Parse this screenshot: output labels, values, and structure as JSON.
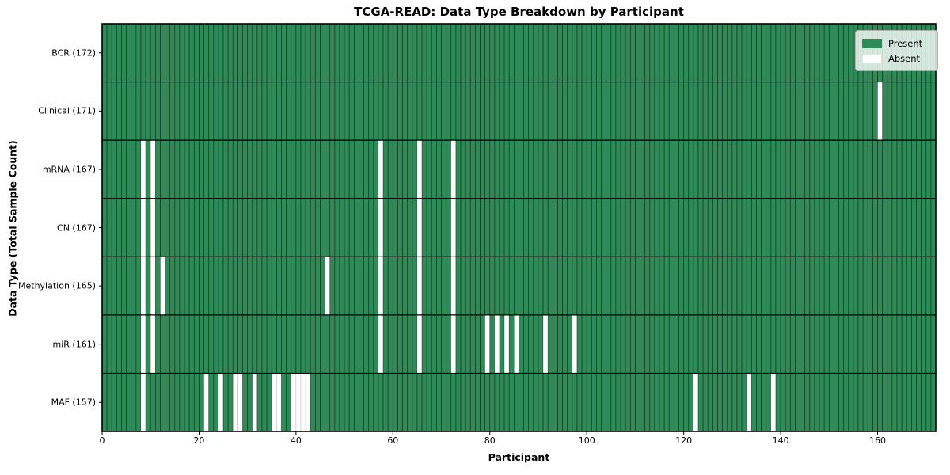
{
  "title": "TCGA-READ: Data Type Breakdown by Participant",
  "chart_data": {
    "type": "heatmap",
    "title": "TCGA-READ: Data Type Breakdown by Participant",
    "xlabel": "Participant",
    "ylabel": "Data Type (Total Sample Count)",
    "x_ticks": [
      0,
      20,
      40,
      60,
      80,
      100,
      120,
      140,
      160
    ],
    "x_range": [
      0,
      172
    ],
    "participants_total": 172,
    "grid": "cell-borders",
    "legend_position": "upper right",
    "legend": {
      "entries": [
        {
          "label": "Present",
          "color": "#2e8b57"
        },
        {
          "label": "Absent",
          "color": "#ffffff"
        }
      ]
    },
    "colors": {
      "present": "#2e8b57",
      "absent": "#ffffff",
      "row_divider": "#000000"
    },
    "rows": [
      {
        "label": "BCR",
        "total": 172,
        "absent_participants": []
      },
      {
        "label": "Clinical",
        "total": 171,
        "absent_participants": [
          160
        ]
      },
      {
        "label": "mRNA",
        "total": 167,
        "absent_participants": [
          8,
          10,
          57,
          65,
          72
        ]
      },
      {
        "label": "CN",
        "total": 167,
        "absent_participants": [
          8,
          10,
          57,
          65,
          72
        ]
      },
      {
        "label": "Methylation",
        "total": 165,
        "absent_participants": [
          8,
          10,
          12,
          46,
          57,
          65,
          72
        ]
      },
      {
        "label": "miR",
        "total": 161,
        "absent_participants": [
          8,
          10,
          57,
          65,
          72,
          79,
          81,
          83,
          85,
          91,
          97
        ]
      },
      {
        "label": "MAF",
        "total": 157,
        "absent_participants": [
          8,
          21,
          24,
          27,
          28,
          31,
          35,
          36,
          39,
          40,
          41,
          42,
          122,
          133,
          138
        ]
      }
    ]
  }
}
